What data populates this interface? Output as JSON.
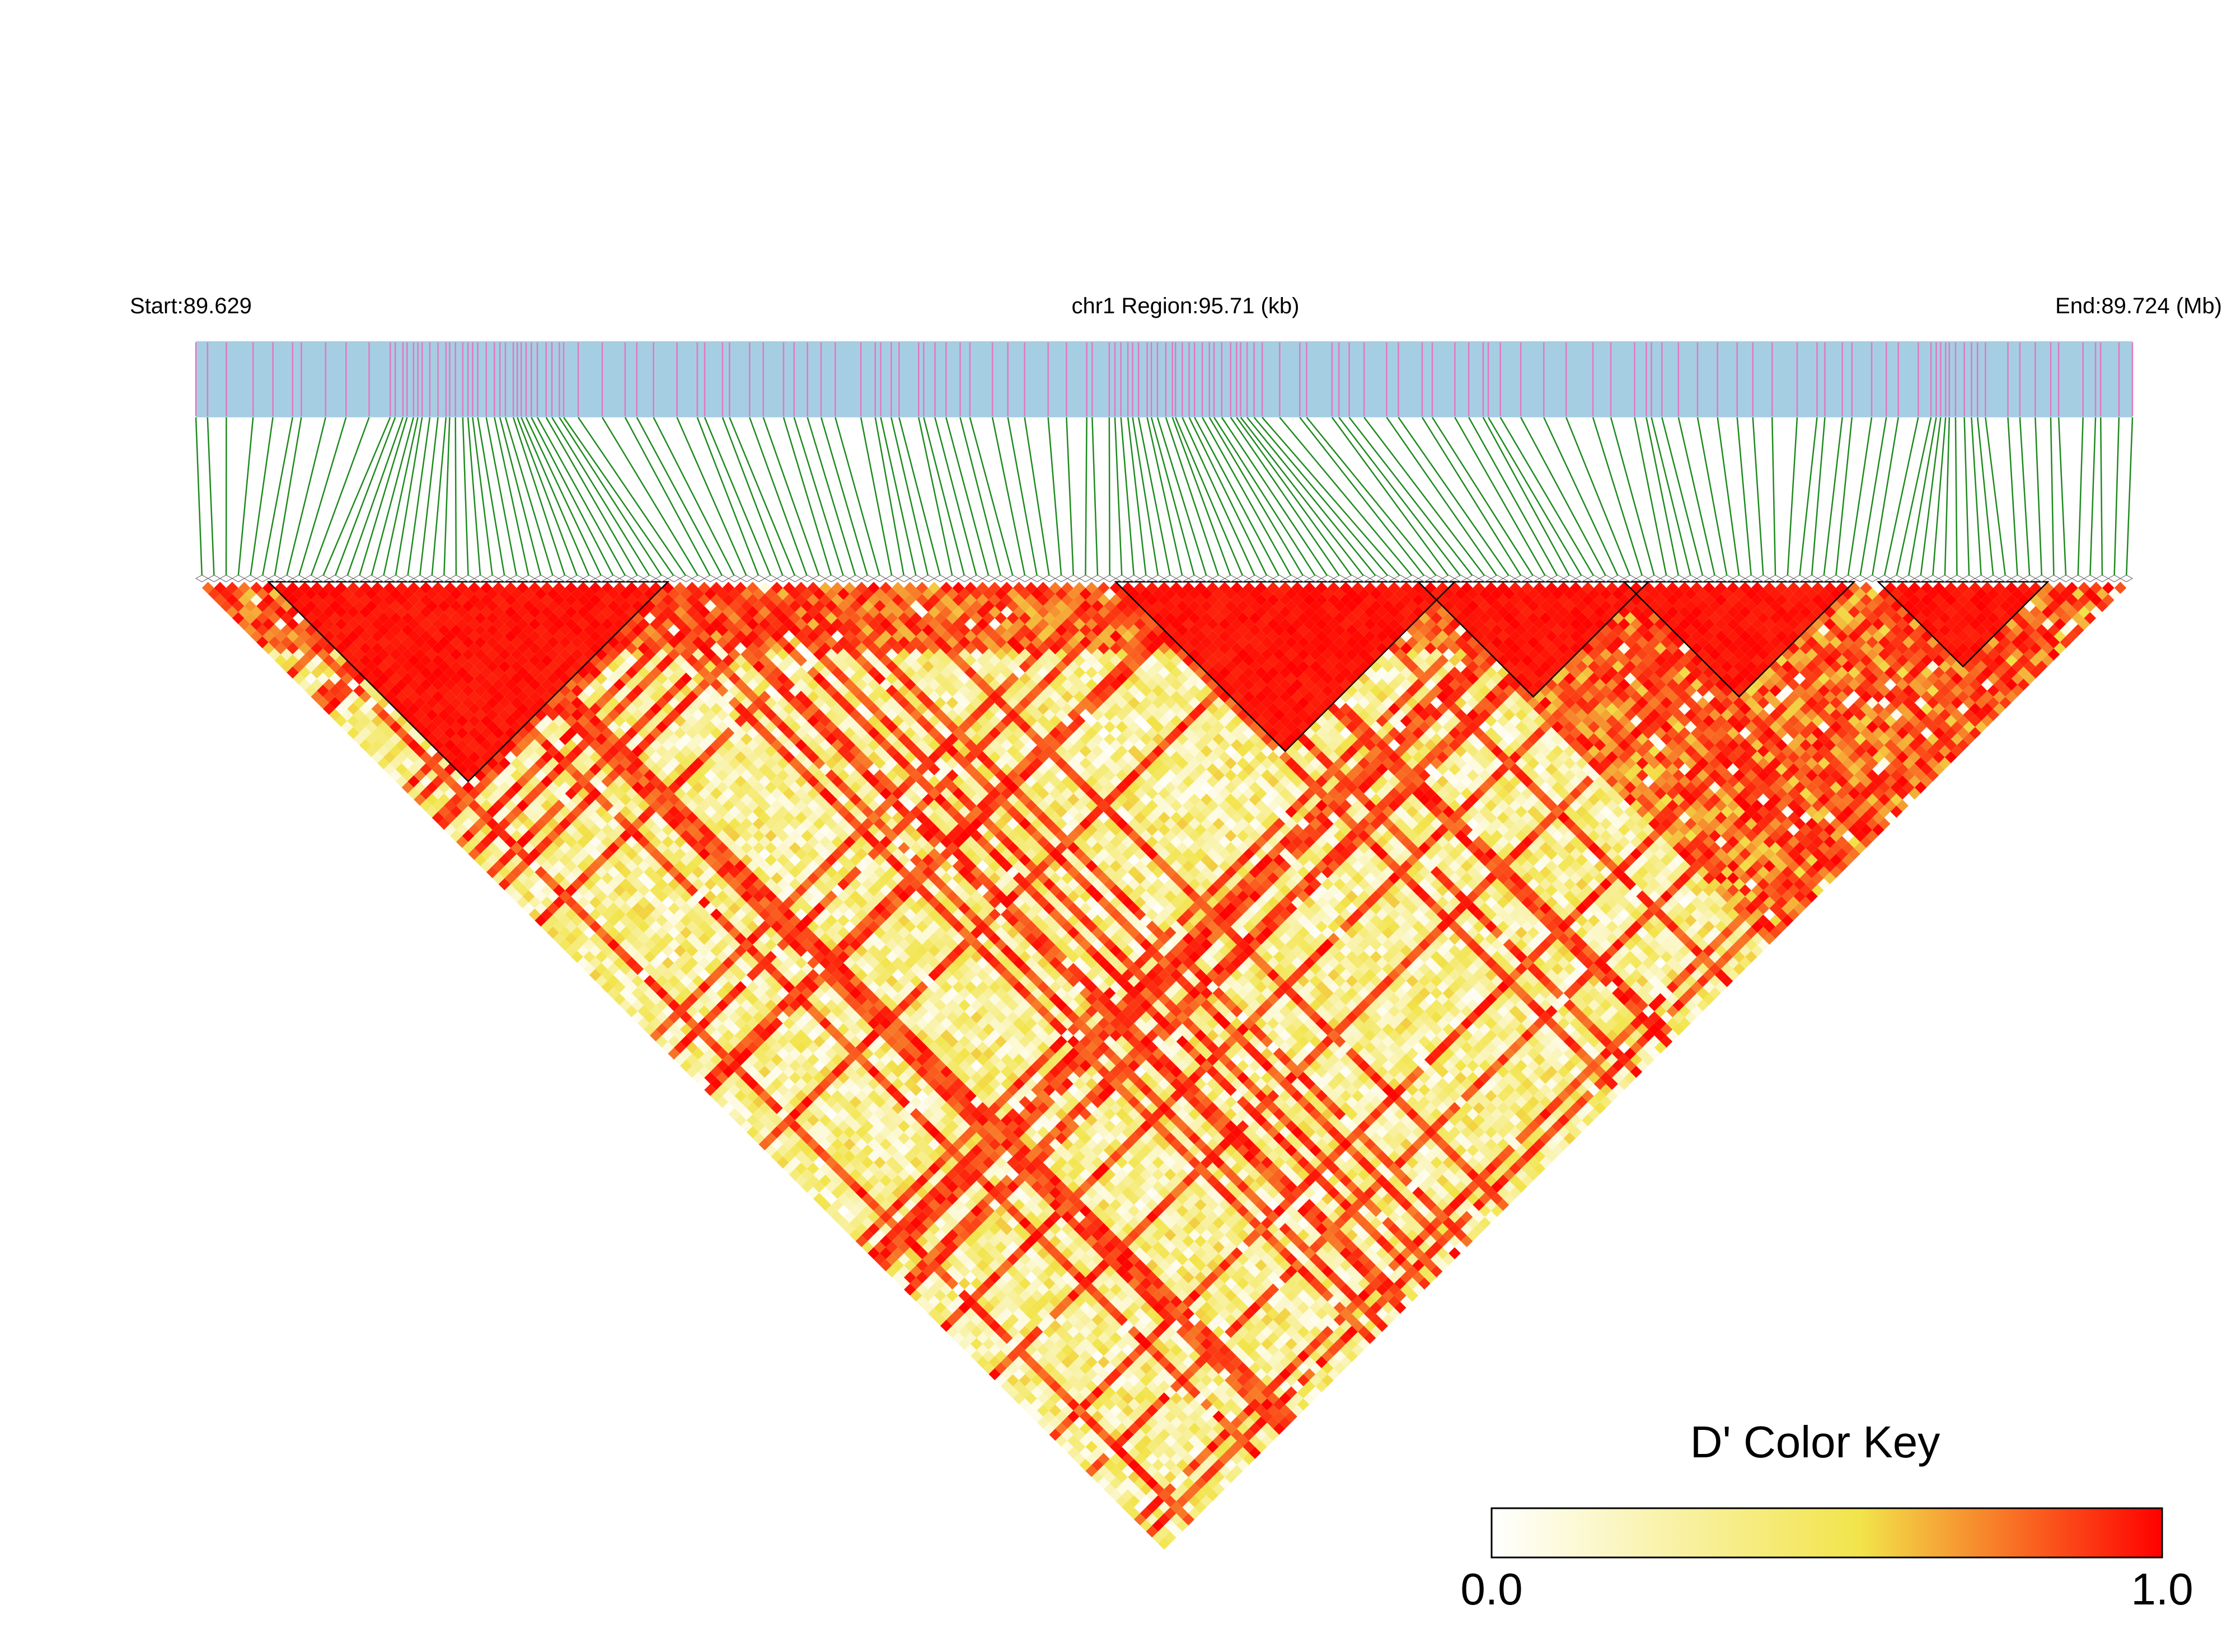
{
  "chart_data": {
    "type": "heatmap",
    "subtype": "linkage-disequilibrium-triangle",
    "metric": "D'",
    "header": {
      "start_label": "Start:89.629",
      "region_label": "chr1 Region:95.71 (kb)",
      "end_label": "End:89.724 (Mb)"
    },
    "region": {
      "chromosome": "chr1",
      "start_mb": 89.629,
      "end_mb": 89.724,
      "span_kb": 95.71
    },
    "snp_count": 160,
    "colors": {
      "track_background": "#a6cee3",
      "snp_tick": "#e377c2",
      "connector": "#1f8a1f",
      "low": "#ffffff",
      "mid": "#f2e44a",
      "high": "#ff0000",
      "block_outline": "#000000"
    },
    "ld_blocks": [
      {
        "from_snp": 6,
        "to_snp": 38
      },
      {
        "from_snp": 76,
        "to_snp": 103
      },
      {
        "from_snp": 101,
        "to_snp": 119
      },
      {
        "from_snp": 118,
        "to_snp": 136
      },
      {
        "from_snp": 139,
        "to_snp": 152
      }
    ],
    "color_key": {
      "title": "D' Color Key",
      "min_label": "0.0",
      "max_label": "1.0",
      "range": [
        0.0,
        1.0
      ]
    }
  }
}
